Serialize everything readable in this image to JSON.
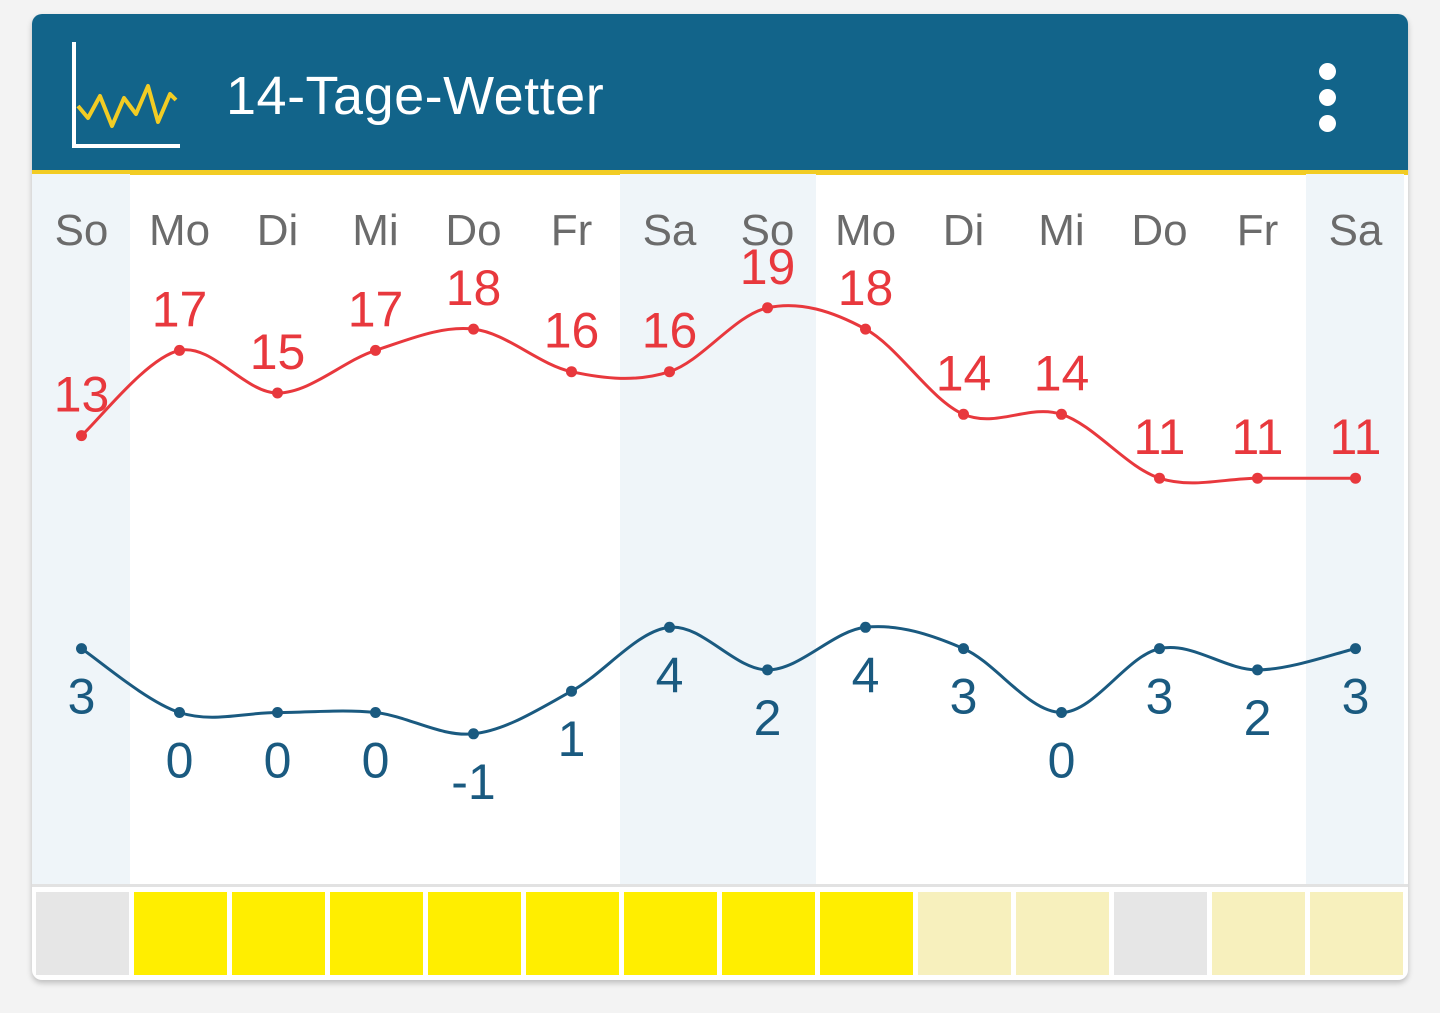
{
  "header": {
    "title": "14-Tage-Wetter",
    "icon": "line-chart-icon",
    "menu_icon": "more-vert-icon",
    "background_color": "#12648a",
    "accent_color": "#f2cc24"
  },
  "chart_data": {
    "type": "line",
    "categories": [
      "So",
      "Mo",
      "Di",
      "Mi",
      "Do",
      "Fr",
      "Sa",
      "So",
      "Mo",
      "Di",
      "Mi",
      "Do",
      "Fr",
      "Sa"
    ],
    "weekend": [
      true,
      false,
      false,
      false,
      false,
      false,
      true,
      true,
      false,
      false,
      false,
      false,
      false,
      true
    ],
    "series": [
      {
        "color": "#e8383d",
        "values": [
          13,
          17,
          15,
          17,
          18,
          16,
          16,
          19,
          18,
          14,
          14,
          11,
          11,
          11
        ]
      },
      {
        "color": "#1a5a80",
        "values": [
          3,
          0,
          0,
          0,
          -1,
          1,
          4,
          2,
          4,
          3,
          0,
          3,
          2,
          3
        ]
      }
    ],
    "sunshine_level": [
      "none",
      "high",
      "high",
      "high",
      "high",
      "high",
      "high",
      "high",
      "high",
      "low",
      "low",
      "none",
      "low",
      "low"
    ],
    "sunshine_colors": {
      "none": "#e6e6e6",
      "high": "#ffee00",
      "low": "#f7f0bd"
    },
    "weekend_color": "#eff5f9"
  }
}
